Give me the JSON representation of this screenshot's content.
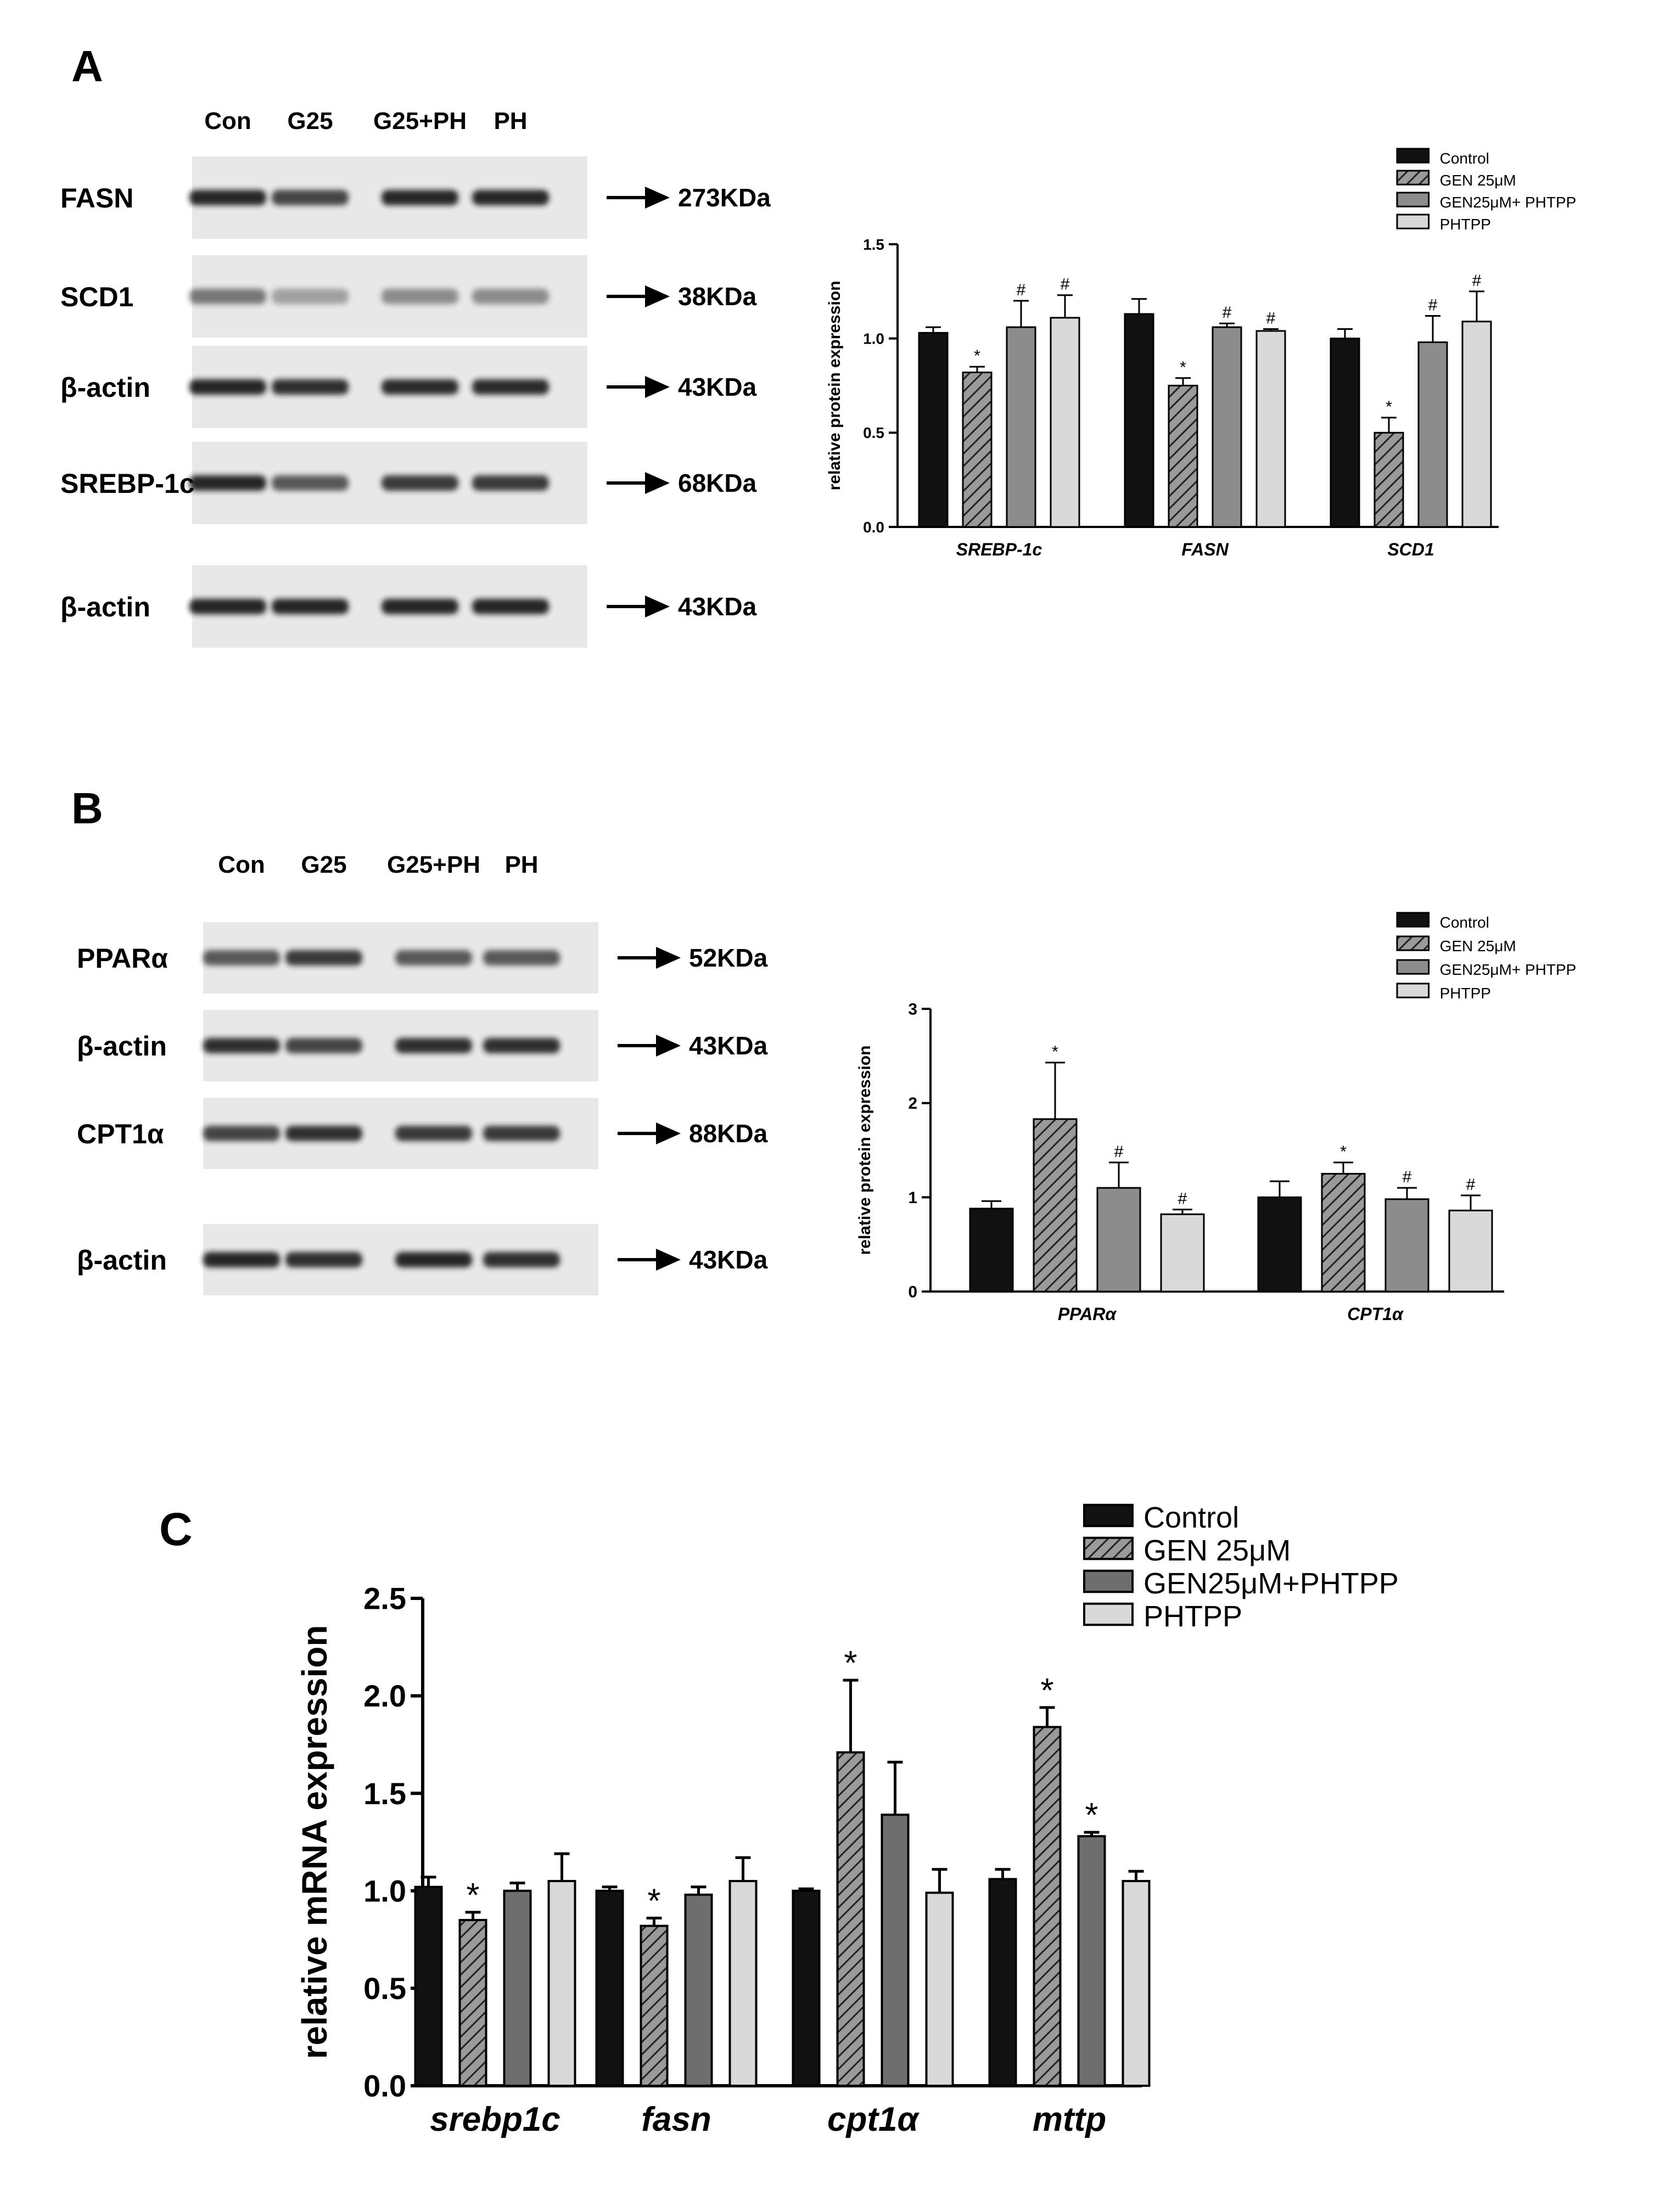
{
  "panels": {
    "A": {
      "letter": "A",
      "lanes": [
        "Con",
        "G25",
        "G25+PH",
        "PH"
      ],
      "blots": [
        {
          "name": "FASN",
          "size": "273KDa",
          "intensity": [
            0.95,
            0.8,
            0.95,
            0.95
          ]
        },
        {
          "name": "SCD1",
          "size": "38KDa",
          "intensity": [
            0.55,
            0.35,
            0.45,
            0.45
          ]
        },
        {
          "name": "β-actin",
          "size": "43KDa",
          "intensity": [
            0.95,
            0.9,
            0.92,
            0.92
          ]
        },
        {
          "name": "SREBP-1c",
          "size": "68KDa",
          "intensity": [
            0.95,
            0.7,
            0.85,
            0.85
          ]
        },
        {
          "name": "β-actin",
          "size": "43KDa",
          "intensity": [
            0.95,
            0.95,
            0.95,
            0.95
          ]
        }
      ]
    },
    "B": {
      "letter": "B",
      "lanes": [
        "Con",
        "G25",
        "G25+PH",
        "PH"
      ],
      "blots": [
        {
          "name": "PPARα",
          "size": "52KDa",
          "intensity": [
            0.7,
            0.85,
            0.7,
            0.7
          ]
        },
        {
          "name": "β-actin",
          "size": "43KDa",
          "intensity": [
            0.9,
            0.8,
            0.9,
            0.9
          ]
        },
        {
          "name": "CPT1α",
          "size": "88KDa",
          "intensity": [
            0.8,
            0.9,
            0.85,
            0.85
          ]
        },
        {
          "name": "β-actin",
          "size": "43KDa",
          "intensity": [
            0.95,
            0.9,
            0.95,
            0.9
          ]
        }
      ]
    },
    "C": {
      "letter": "C"
    }
  },
  "colors": {
    "control": "#111111",
    "gen": "#888888",
    "genph": "#6e6e6e",
    "phtpp": "#d9d9d9",
    "blot_bg": "#e8e8e8",
    "band": "#1a1a1a"
  },
  "chart_data": [
    {
      "panel": "A",
      "type": "bar",
      "ylabel": "relative protein expression",
      "ylim": [
        0,
        1.5
      ],
      "yticks": [
        "0.0",
        "0.5",
        "1.0",
        "1.5"
      ],
      "categories": [
        "SREBP-1c",
        "FASN",
        "SCD1"
      ],
      "legend": [
        "Control",
        "GEN 25μM",
        "GEN25μM+ PHTPP",
        "PHTPP"
      ],
      "legend_position": "top-right",
      "series": [
        {
          "name": "Control",
          "values": [
            1.03,
            1.13,
            1.0
          ],
          "errors": [
            0.03,
            0.08,
            0.05
          ],
          "marks": [
            "",
            "",
            ""
          ]
        },
        {
          "name": "GEN 25μM",
          "values": [
            0.82,
            0.75,
            0.5
          ],
          "errors": [
            0.03,
            0.04,
            0.08
          ],
          "marks": [
            "*",
            "*",
            "*"
          ]
        },
        {
          "name": "GEN25μM+ PHTPP",
          "values": [
            1.06,
            1.06,
            0.98
          ],
          "errors": [
            0.14,
            0.02,
            0.14
          ],
          "marks": [
            "#",
            "#",
            "#"
          ]
        },
        {
          "name": "PHTPP",
          "values": [
            1.11,
            1.04,
            1.09
          ],
          "errors": [
            0.12,
            0.01,
            0.16
          ],
          "marks": [
            "#",
            "#",
            "#"
          ]
        }
      ]
    },
    {
      "panel": "B",
      "type": "bar",
      "ylabel": "relative protein expression",
      "ylim": [
        0,
        3
      ],
      "yticks": [
        "0",
        "1",
        "2",
        "3"
      ],
      "categories": [
        "PPARα",
        "CPT1α"
      ],
      "legend": [
        "Control",
        "GEN 25μM",
        "GEN25μM+ PHTPP",
        "PHTPP"
      ],
      "legend_position": "top-right",
      "series": [
        {
          "name": "Control",
          "values": [
            0.88,
            1.0
          ],
          "errors": [
            0.08,
            0.17
          ],
          "marks": [
            "",
            ""
          ]
        },
        {
          "name": "GEN 25μM",
          "values": [
            1.83,
            1.25
          ],
          "errors": [
            0.6,
            0.12
          ],
          "marks": [
            "*",
            "*"
          ]
        },
        {
          "name": "GEN25μM+ PHTPP",
          "values": [
            1.1,
            0.98
          ],
          "errors": [
            0.27,
            0.12
          ],
          "marks": [
            "#",
            "#"
          ]
        },
        {
          "name": "PHTPP",
          "values": [
            0.82,
            0.86
          ],
          "errors": [
            0.05,
            0.16
          ],
          "marks": [
            "#",
            "#"
          ]
        }
      ]
    },
    {
      "panel": "C",
      "type": "bar",
      "ylabel": "relative mRNA expression",
      "ylim": [
        0,
        2.5
      ],
      "yticks": [
        "0.0",
        "0.5",
        "1.0",
        "1.5",
        "2.0",
        "2.5"
      ],
      "categories": [
        "srebp1c",
        "fasn",
        "cpt1α",
        "mttp"
      ],
      "legend": [
        "Control",
        "GEN 25μM",
        "GEN25μM+PHTPP",
        "PHTPP"
      ],
      "legend_position": "top-right",
      "series": [
        {
          "name": "Control",
          "values": [
            1.02,
            1.0,
            1.0,
            1.06
          ],
          "errors": [
            0.05,
            0.02,
            0.01,
            0.05
          ],
          "marks": [
            "",
            "",
            "",
            ""
          ]
        },
        {
          "name": "GEN 25μM",
          "values": [
            0.85,
            0.82,
            1.71,
            1.84
          ],
          "errors": [
            0.04,
            0.04,
            0.37,
            0.1
          ],
          "marks": [
            "*",
            "*",
            "*",
            "*"
          ]
        },
        {
          "name": "GEN25μM+PHTPP",
          "values": [
            1.0,
            0.98,
            1.39,
            1.28
          ],
          "errors": [
            0.04,
            0.04,
            0.27,
            0.02
          ],
          "marks": [
            "",
            "",
            "",
            "*"
          ]
        },
        {
          "name": "PHTPP",
          "values": [
            1.05,
            1.05,
            0.99,
            1.05
          ],
          "errors": [
            0.14,
            0.12,
            0.12,
            0.05
          ],
          "marks": [
            "",
            "",
            "",
            ""
          ]
        }
      ]
    }
  ]
}
